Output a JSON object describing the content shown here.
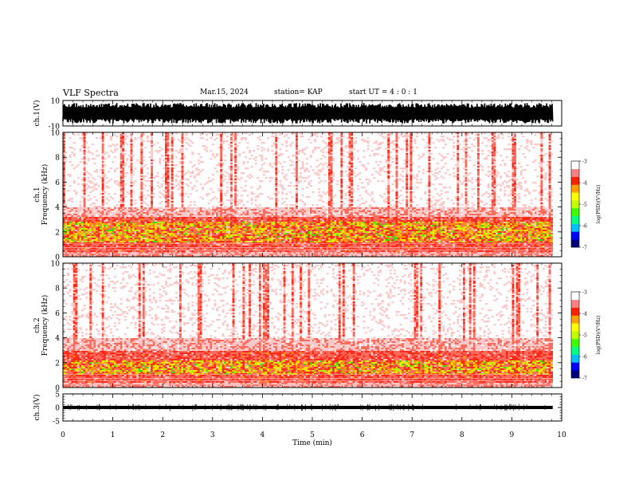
{
  "header": {
    "title": "VLF Spectra",
    "date": "Mar.15, 2024",
    "station": "station= KAP",
    "start_ut": "start UT =  4 : 0  : 1"
  },
  "colors": {
    "background": "#ffffff",
    "spectrogram_low": "#ffffff",
    "spectrogram_mid": "#ff3b30",
    "spectrogram_high": "#ffe600",
    "spectrogram_peak": "#00e000",
    "waveform": "#000000"
  },
  "chart_data": [
    {
      "type": "line",
      "panel": "ch1-waveform",
      "ylabel": "ch.1(V)",
      "ylim": [
        -10,
        10
      ],
      "yticks": [
        "10",
        "-10"
      ],
      "xlim": [
        0,
        10
      ],
      "x_end": 9.82,
      "description_of_values": "dense noise waveform, amplitude mostly -8 to 8 V",
      "amplitude_range": [
        -8,
        8
      ]
    },
    {
      "type": "heatmap",
      "panel": "ch1-spectrogram",
      "ylabel": "ch.1\nFrequency  (kHz)",
      "ylim": [
        0,
        10
      ],
      "yticks": [
        "0",
        "2",
        "4",
        "6",
        "8",
        "10"
      ],
      "xlim": [
        0,
        10
      ],
      "x_end": 9.82,
      "colorbar": {
        "label": "log(PSD)(V²/Hz)",
        "range": [
          -7,
          -3
        ],
        "ticks": [
          "-3",
          "-4",
          "-5",
          "-6",
          "-7"
        ],
        "colors": [
          "#000080",
          "#0000ff",
          "#00c0ff",
          "#00ff80",
          "#40ff00",
          "#c0ff00",
          "#ffff00",
          "#ffa000",
          "#ff2000",
          "#ff8080",
          "#ffffff"
        ]
      },
      "intense_band_khz": [
        0.4,
        3.2
      ],
      "band_peak_khz": [
        1.2,
        2.8
      ],
      "level_log_psd": {
        "above_4khz": -3.5,
        "band": -4.2,
        "peak": -4.6
      }
    },
    {
      "type": "heatmap",
      "panel": "ch2-spectrogram",
      "ylabel": "ch.2\nFrequency  (kHz)",
      "ylim": [
        0,
        10
      ],
      "yticks": [
        "0",
        "2",
        "4",
        "6",
        "8",
        "10"
      ],
      "xlim": [
        0,
        10
      ],
      "x_end": 9.82,
      "colorbar": {
        "label": "log(PSD)(V²/Hz)",
        "range": [
          -7,
          -3
        ],
        "ticks": [
          "-3",
          "-4",
          "-5",
          "-6",
          "-7"
        ],
        "colors": [
          "#000080",
          "#0000ff",
          "#00c0ff",
          "#00ff80",
          "#40ff00",
          "#c0ff00",
          "#ffff00",
          "#ffa000",
          "#ff2000",
          "#ff8080",
          "#ffffff"
        ]
      },
      "intense_band_khz": [
        0.4,
        3.0
      ],
      "band_peak_khz": [
        1.0,
        2.2
      ],
      "level_log_psd": {
        "above_4khz": -3.5,
        "band": -4.3,
        "peak": -4.8
      }
    },
    {
      "type": "line",
      "panel": "ch3-waveform",
      "ylabel": "ch.3(V)",
      "ylim": [
        -5,
        5
      ],
      "yticks": [
        "5",
        "0",
        "-5"
      ],
      "xlim": [
        0,
        10
      ],
      "x_end": 9.82,
      "xlabel": "Time  (min)",
      "xticks": [
        "0",
        "1",
        "2",
        "3",
        "4",
        "5",
        "6",
        "7",
        "8",
        "9",
        "10"
      ],
      "baseline_v": 0,
      "amplitude_range": [
        -0.6,
        0.6
      ]
    }
  ]
}
